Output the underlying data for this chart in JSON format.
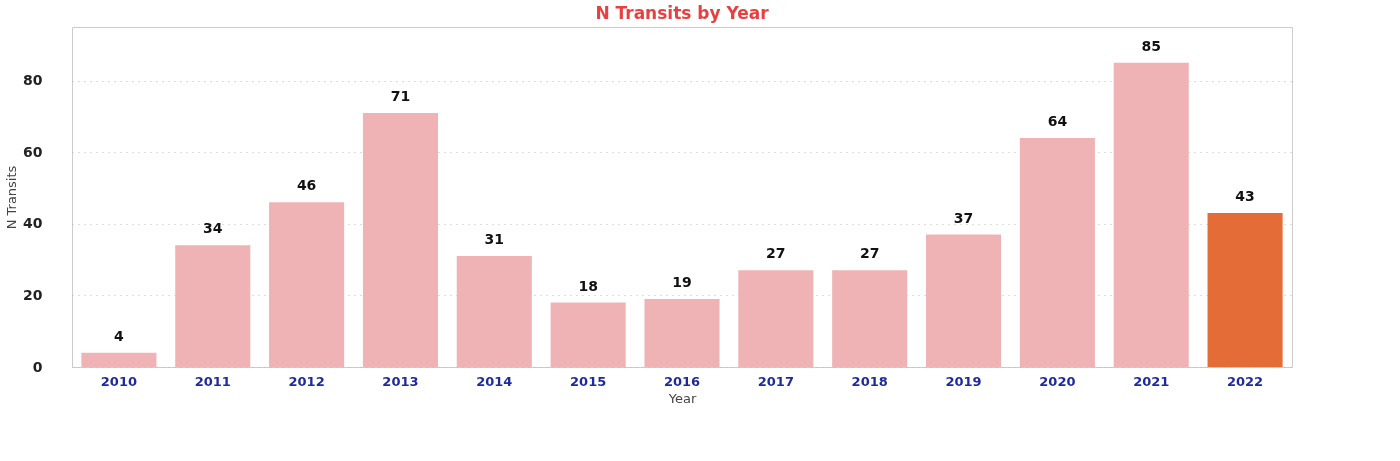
{
  "chart_data": {
    "type": "bar",
    "title": "N Transits by Year",
    "xlabel": "Year",
    "ylabel": "N Transits",
    "categories": [
      "2010",
      "2011",
      "2012",
      "2013",
      "2014",
      "2015",
      "2016",
      "2017",
      "2018",
      "2019",
      "2020",
      "2021",
      "2022"
    ],
    "values": [
      4,
      34,
      46,
      71,
      31,
      18,
      19,
      27,
      27,
      37,
      64,
      85,
      43
    ],
    "colors": [
      "#efb3b6",
      "#efb3b6",
      "#efb3b6",
      "#efb3b6",
      "#efb3b6",
      "#efb3b6",
      "#efb3b6",
      "#efb3b6",
      "#efb3b6",
      "#efb3b6",
      "#efb3b6",
      "#efb3b6",
      "#e46c36"
    ],
    "ylim": [
      0,
      95
    ],
    "yticks": [
      0,
      20,
      40,
      60,
      80
    ],
    "grid": "y",
    "data_labels": true,
    "legend": false
  }
}
